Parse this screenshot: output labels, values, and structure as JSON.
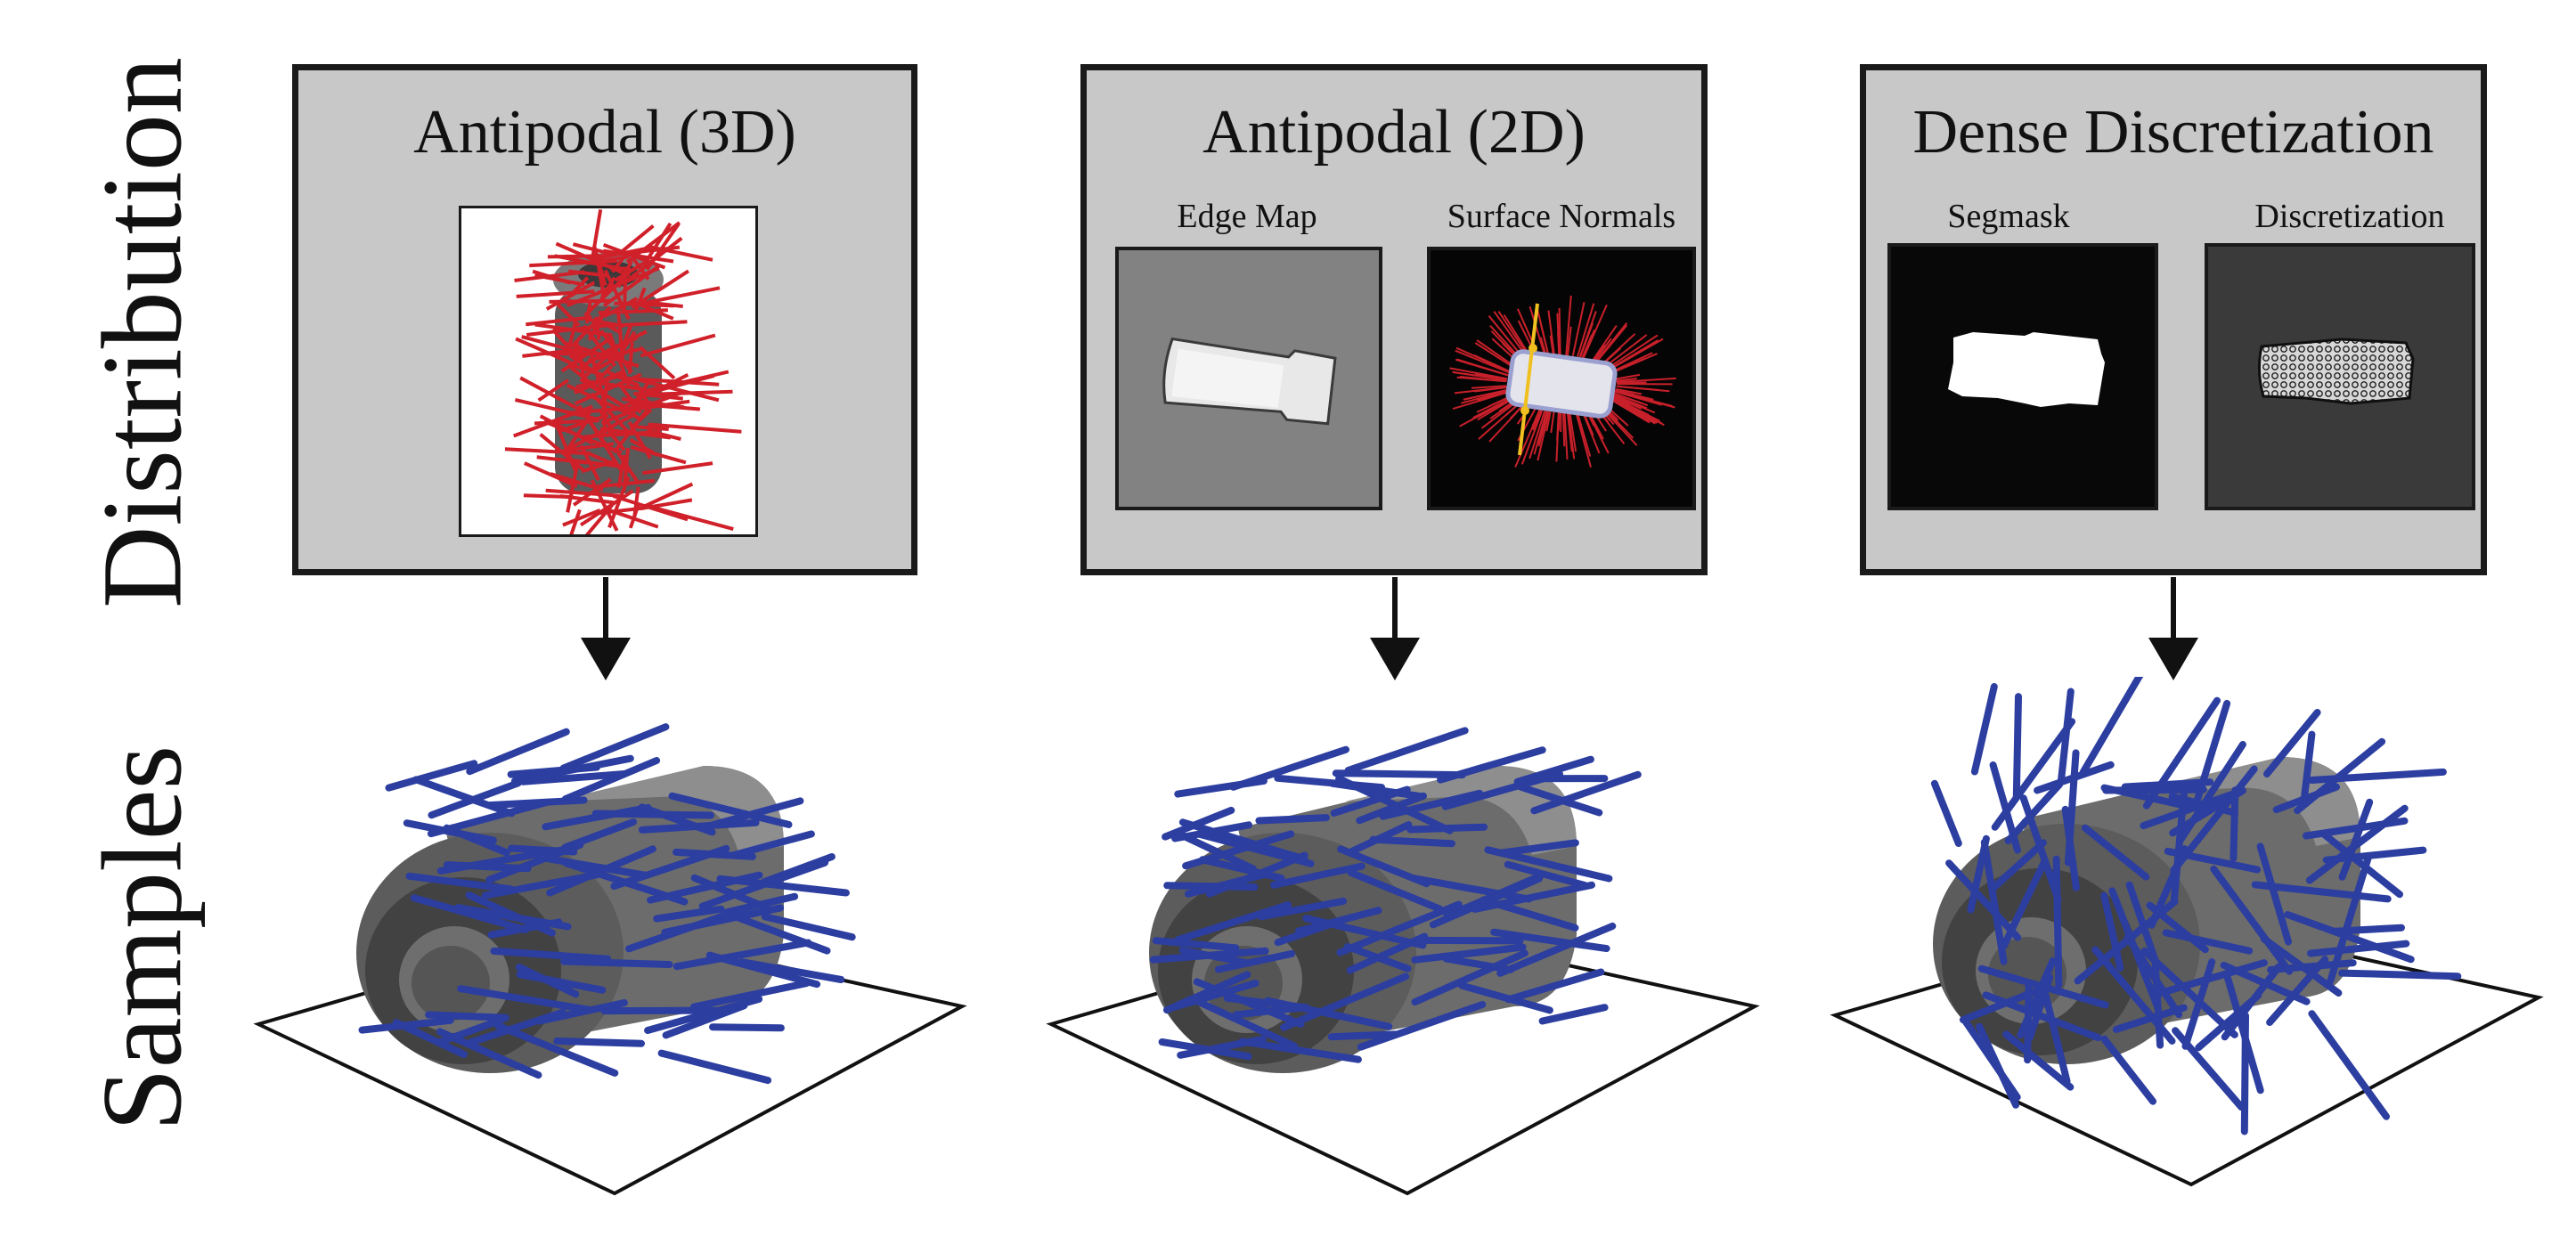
{
  "rows": {
    "distribution_label": "Distribution",
    "samples_label": "Samples"
  },
  "panels": [
    {
      "title": "Antipodal (3D)"
    },
    {
      "title": "Antipodal (2D)",
      "sub_left": "Edge Map",
      "sub_right": "Surface Normals"
    },
    {
      "title": "Dense Discretization",
      "sub_left": "Segmask",
      "sub_right": "Discretization"
    }
  ],
  "colors": {
    "panel_bg": "#c8c8c8",
    "grasp_red": "#d0202a",
    "grasp_blue": "#2c3ea0",
    "normal_yellow": "#f0c020"
  },
  "samples": [
    {
      "grasp_count": 70
    },
    {
      "grasp_count": 75
    },
    {
      "grasp_count": 85
    }
  ]
}
